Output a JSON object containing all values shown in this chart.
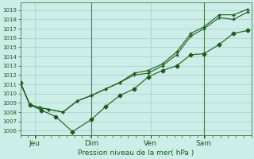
{
  "background_color": "#cceee8",
  "plot_bg_color": "#cceee8",
  "grid_color": "#aacccc",
  "line_color": "#1a5c1a",
  "ylabel": "Pression niveau de la mer( hPa )",
  "ylim": [
    1005.5,
    1019.8
  ],
  "yticks": [
    1006,
    1007,
    1008,
    1009,
    1010,
    1011,
    1012,
    1013,
    1014,
    1015,
    1016,
    1017,
    1018,
    1019
  ],
  "xtick_labels": [
    "Jeu",
    "Dim",
    "Ven",
    "Sam"
  ],
  "xtick_positions": [
    12,
    60,
    110,
    155
  ],
  "xlim": [
    0,
    195
  ],
  "vline_positions": [
    60,
    155
  ],
  "line1_x": [
    0,
    8,
    16,
    24,
    36,
    48,
    60,
    72,
    84,
    96,
    108,
    120,
    132,
    144,
    155,
    168,
    180,
    192
  ],
  "line1_y": [
    1011.2,
    1008.8,
    1008.5,
    1008.3,
    1008.0,
    1009.2,
    1009.8,
    1010.5,
    1011.2,
    1012.0,
    1012.2,
    1013.0,
    1014.2,
    1016.2,
    1017.0,
    1018.2,
    1018.0,
    1018.8
  ],
  "line2_x": [
    0,
    8,
    16,
    24,
    36,
    48,
    60,
    72,
    84,
    96,
    108,
    120,
    132,
    144,
    155,
    168,
    180,
    192
  ],
  "line2_y": [
    1011.2,
    1008.8,
    1008.5,
    1008.3,
    1008.0,
    1009.2,
    1009.8,
    1010.5,
    1011.2,
    1012.2,
    1012.5,
    1013.2,
    1014.5,
    1016.5,
    1017.2,
    1018.5,
    1018.5,
    1019.1
  ],
  "line3_x": [
    0,
    8,
    18,
    30,
    44,
    60,
    72,
    84,
    96,
    108,
    120,
    132,
    144,
    155,
    168,
    180,
    192
  ],
  "line3_y": [
    1011.2,
    1008.8,
    1008.2,
    1007.5,
    1005.9,
    1007.2,
    1008.6,
    1009.8,
    1010.5,
    1011.8,
    1012.5,
    1013.0,
    1014.2,
    1014.3,
    1015.3,
    1016.5,
    1016.8
  ],
  "figsize": [
    3.2,
    2.0
  ],
  "dpi": 100
}
